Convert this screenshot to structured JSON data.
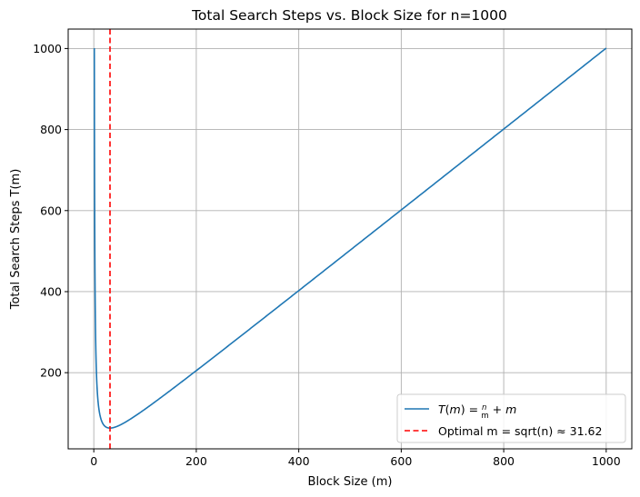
{
  "chart_data": {
    "type": "line",
    "title": "Total Search Steps vs. Block Size for n=1000",
    "xlabel": "Block Size (m)",
    "ylabel": "Total Search Steps T(m)",
    "xlim": [
      -50,
      1050
    ],
    "ylim": [
      12,
      1048
    ],
    "xticks": [
      0,
      200,
      400,
      600,
      800,
      1000
    ],
    "yticks": [
      200,
      400,
      600,
      800,
      1000
    ],
    "grid": true,
    "legend_position": "lower-right",
    "n": 1000,
    "series": [
      {
        "name": "T(m) = n/m + m",
        "function": "n/m + m",
        "x_range": [
          1,
          1000
        ],
        "color": "#1f77b4",
        "style": "solid"
      }
    ],
    "vlines": [
      {
        "name": "Optimal m = sqrt(n) ≈ 31.62",
        "x": 31.62,
        "color": "#ff0000",
        "style": "dashed"
      }
    ]
  }
}
